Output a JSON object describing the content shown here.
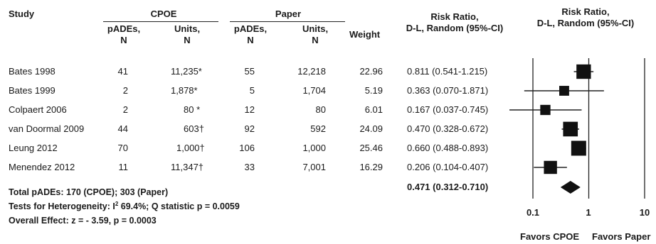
{
  "headers": {
    "study": "Study",
    "cpoe_group": "CPOE",
    "paper_group": "Paper",
    "pades_top": "pADEs,",
    "pades_bottom": "N",
    "units_top": "Units,",
    "units_bottom": "N",
    "weight": "Weight",
    "rr_top": "Risk Ratio,",
    "rr_bottom": "D-L, Random (95%-CI)",
    "plot_top": "Risk Ratio,",
    "plot_bottom": "D-L, Random (95%-CI)"
  },
  "rows": [
    {
      "study": "Bates 1998",
      "cpoe_pades": "41",
      "cpoe_units": "11,235*",
      "paper_pades": "55",
      "paper_units": "12,218",
      "weight": "22.96",
      "rr_text": "0.811 (0.541-1.215)"
    },
    {
      "study": "Bates 1999",
      "cpoe_pades": "2",
      "cpoe_units": "1,878*",
      "paper_pades": "5",
      "paper_units": "1,704",
      "weight": "5.19",
      "rr_text": "0.363 (0.070-1.871)"
    },
    {
      "study": "Colpaert 2006",
      "cpoe_pades": "2",
      "cpoe_units": "80 *",
      "paper_pades": "12",
      "paper_units": "80",
      "weight": "6.01",
      "rr_text": "0.167 (0.037-0.745)"
    },
    {
      "study": "van Doormal 2009",
      "cpoe_pades": "44",
      "cpoe_units": "603†",
      "paper_pades": "92",
      "paper_units": "592",
      "weight": "24.09",
      "rr_text": "0.470 (0.328-0.672)"
    },
    {
      "study": "Leung 2012",
      "cpoe_pades": "70",
      "cpoe_units": "1,000†",
      "paper_pades": "106",
      "paper_units": "1,000",
      "weight": "25.46",
      "rr_text": "0.660 (0.488-0.893)"
    },
    {
      "study": "Menendez 2012",
      "cpoe_pades": "11",
      "cpoe_units": "11,347†",
      "paper_pades": "33",
      "paper_units": "7,001",
      "weight": "16.29",
      "rr_text": "0.206 (0.104-0.407)"
    }
  ],
  "summary": {
    "total": "Total pADEs: 170 (CPOE); 303 (Paper)",
    "heterogeneity_prefix": "Tests for Heterogeneity:  I",
    "heterogeneity_sup": "2",
    "heterogeneity_suffix": " 69.4%; Q statistic p = 0.0059",
    "overall": "Overall Effect: z = - 3.59, p = 0.0003",
    "pooled_text": "0.471 (0.312-0.710)"
  },
  "axis": {
    "tick_labels": [
      "0.1",
      "1",
      "10"
    ],
    "favors_left": "Favors CPOE",
    "favors_right": "Favors Paper"
  },
  "chart_data": {
    "type": "forest",
    "scale": "log",
    "xlim": [
      0.1,
      10
    ],
    "ticks": [
      0.1,
      1,
      10
    ],
    "studies": [
      {
        "name": "Bates 1998",
        "rr": 0.811,
        "lo": 0.541,
        "hi": 1.215,
        "weight": 22.96
      },
      {
        "name": "Bates 1999",
        "rr": 0.363,
        "lo": 0.07,
        "hi": 1.871,
        "weight": 5.19
      },
      {
        "name": "Colpaert 2006",
        "rr": 0.167,
        "lo": 0.037,
        "hi": 0.745,
        "weight": 6.01
      },
      {
        "name": "van Doormal 2009",
        "rr": 0.47,
        "lo": 0.328,
        "hi": 0.672,
        "weight": 24.09
      },
      {
        "name": "Leung 2012",
        "rr": 0.66,
        "lo": 0.488,
        "hi": 0.893,
        "weight": 25.46
      },
      {
        "name": "Menendez 2012",
        "rr": 0.206,
        "lo": 0.104,
        "hi": 0.407,
        "weight": 16.29
      }
    ],
    "pooled": {
      "rr": 0.471,
      "lo": 0.312,
      "hi": 0.71
    }
  }
}
